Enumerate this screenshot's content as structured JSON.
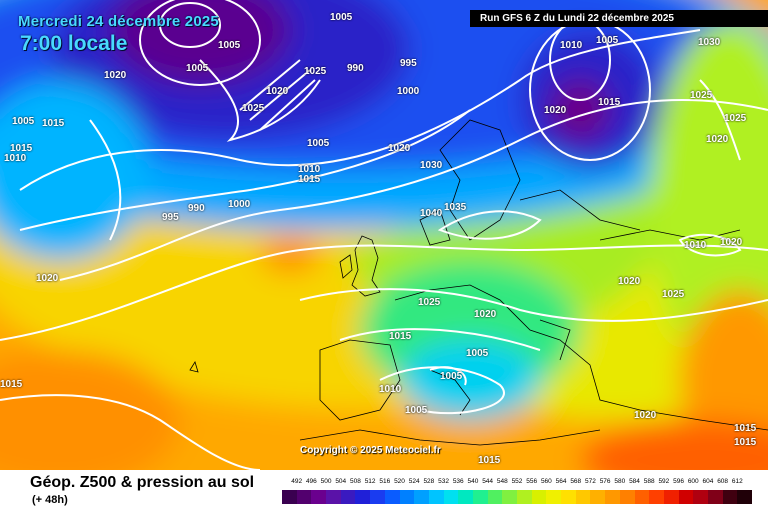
{
  "header": {
    "date_line": "Mercredi 24 décembre 2025",
    "time_line": "7:00 locale",
    "run_info": "Run GFS 6 Z du Lundi 22 décembre 2025"
  },
  "map": {
    "copyright": "Copyright © 2025 Meteociel.fr",
    "isobar_labels": [
      {
        "text": "1005"
      },
      {
        "text": "1005"
      },
      {
        "text": "1005"
      },
      {
        "text": "1020"
      },
      {
        "text": "1020"
      },
      {
        "text": "1025"
      },
      {
        "text": "1025"
      },
      {
        "text": "990"
      },
      {
        "text": "995"
      },
      {
        "text": "1000"
      },
      {
        "text": "1015"
      },
      {
        "text": "1015"
      },
      {
        "text": "1010"
      },
      {
        "text": "1005"
      },
      {
        "text": "995"
      },
      {
        "text": "990"
      },
      {
        "text": "1000"
      },
      {
        "text": "1005"
      },
      {
        "text": "1010"
      },
      {
        "text": "1015"
      },
      {
        "text": "1020"
      },
      {
        "text": "1030"
      },
      {
        "text": "1040"
      },
      {
        "text": "1035"
      },
      {
        "text": "1010"
      },
      {
        "text": "1005"
      },
      {
        "text": "1030"
      },
      {
        "text": "1020"
      },
      {
        "text": "1015"
      },
      {
        "text": "1025"
      },
      {
        "text": "1025"
      },
      {
        "text": "1020"
      },
      {
        "text": "1020"
      },
      {
        "text": "1025"
      },
      {
        "text": "1020"
      },
      {
        "text": "1015"
      },
      {
        "text": "1005"
      },
      {
        "text": "1005"
      },
      {
        "text": "1010"
      },
      {
        "text": "1005"
      },
      {
        "text": "1020"
      },
      {
        "text": "1015"
      },
      {
        "text": "1015"
      },
      {
        "text": "1015"
      },
      {
        "text": "1015"
      },
      {
        "text": "1020"
      },
      {
        "text": "1020"
      },
      {
        "text": "1025"
      },
      {
        "text": "1010"
      }
    ]
  },
  "footer": {
    "title": "Géop. Z500 & pression au sol",
    "subtitle": "(+ 48h)"
  },
  "legend": {
    "values": [
      "492",
      "496",
      "500",
      "504",
      "508",
      "512",
      "516",
      "520",
      "524",
      "528",
      "532",
      "536",
      "540",
      "544",
      "548",
      "552",
      "556",
      "560",
      "564",
      "568",
      "572",
      "576",
      "580",
      "584",
      "588",
      "592",
      "596",
      "600",
      "604",
      "608",
      "612"
    ],
    "colors": [
      "#3a0050",
      "#52006e",
      "#6a008e",
      "#5a12a8",
      "#3a1ac0",
      "#2020d8",
      "#1a3cf0",
      "#0a5cff",
      "#0080ff",
      "#00a0ff",
      "#00c4ff",
      "#00e0f0",
      "#00e8c0",
      "#20f090",
      "#50f060",
      "#80f040",
      "#b0f020",
      "#d8f000",
      "#f0f000",
      "#ffe000",
      "#ffc800",
      "#ffb000",
      "#ff9800",
      "#ff8000",
      "#ff6000",
      "#ff4000",
      "#f02000",
      "#d00000",
      "#b00010",
      "#800018",
      "#400010",
      "#200008"
    ]
  }
}
